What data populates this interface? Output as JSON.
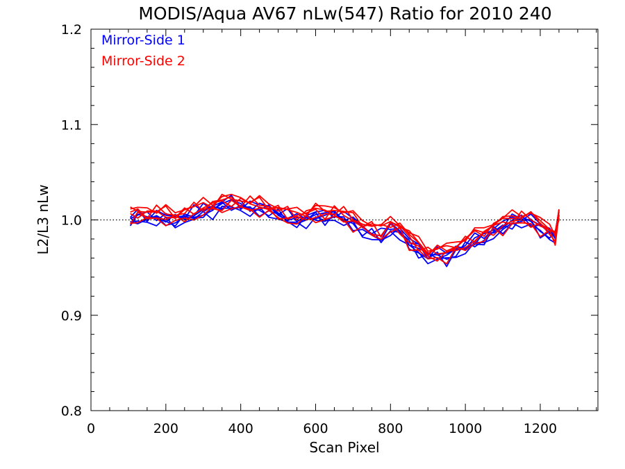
{
  "chart_data": {
    "type": "line",
    "title": "MODIS/Aqua AV67 nLw(547) Ratio for 2010 240",
    "xlabel": "Scan Pixel",
    "ylabel": "L2/L3 nLw",
    "xlim": [
      0,
      1354
    ],
    "ylim": [
      0.8,
      1.2
    ],
    "xticks": [
      0,
      200,
      400,
      600,
      800,
      1000,
      1200
    ],
    "xtick_labels": [
      "0",
      "200",
      "400",
      "600",
      "800",
      "1000",
      "1200"
    ],
    "yticks": [
      0.8,
      0.9,
      1.0,
      1.1,
      1.2
    ],
    "ytick_labels": [
      "0.8",
      "0.9",
      "1.0",
      "1.1",
      "1.2"
    ],
    "reference_line": 1.0,
    "legend_position": "top-left",
    "colors": {
      "Mirror-Side 1": "#0000ff",
      "Mirror-Side 2": "#ff0000",
      "axes": "#000000"
    },
    "x": [
      105,
      125,
      150,
      175,
      200,
      225,
      250,
      275,
      300,
      325,
      350,
      375,
      400,
      425,
      450,
      475,
      500,
      525,
      550,
      575,
      600,
      625,
      650,
      675,
      700,
      725,
      750,
      775,
      800,
      825,
      850,
      875,
      900,
      925,
      950,
      975,
      1000,
      1025,
      1050,
      1075,
      1100,
      1125,
      1150,
      1175,
      1200,
      1225,
      1240,
      1250
    ],
    "series": [
      {
        "name": "Mirror-Side 1",
        "offsets": [
          -0.006,
          -0.003,
          -0.001,
          0.002,
          -0.004,
          0.001
        ],
        "values": [
          1.001,
          1.004,
          1.003,
          1.005,
          1.002,
          1.001,
          1.004,
          1.007,
          1.01,
          1.013,
          1.017,
          1.019,
          1.016,
          1.014,
          1.013,
          1.012,
          1.008,
          1.003,
          1.0,
          1.003,
          1.006,
          1.004,
          1.007,
          1.003,
          0.999,
          0.991,
          0.987,
          0.983,
          0.992,
          0.99,
          0.977,
          0.97,
          0.963,
          0.966,
          0.962,
          0.969,
          0.973,
          0.979,
          0.982,
          0.99,
          0.994,
          1.0,
          1.002,
          1.001,
          0.992,
          0.987,
          0.985,
          1.006
        ]
      },
      {
        "name": "Mirror-Side 2",
        "offsets": [
          0.005,
          0.002,
          -0.002,
          0.004,
          -0.005,
          0.007
        ],
        "values": [
          1.003,
          1.005,
          1.004,
          1.006,
          1.003,
          1.002,
          1.005,
          1.008,
          1.011,
          1.014,
          1.016,
          1.018,
          1.016,
          1.015,
          1.013,
          1.011,
          1.007,
          1.004,
          1.002,
          1.004,
          1.007,
          1.005,
          1.007,
          1.004,
          0.998,
          0.993,
          0.99,
          0.986,
          0.994,
          0.991,
          0.979,
          0.972,
          0.963,
          0.964,
          0.965,
          0.97,
          0.975,
          0.981,
          0.984,
          0.991,
          0.995,
          0.999,
          1.001,
          1.0,
          0.993,
          0.988,
          0.981,
          1.006
        ]
      }
    ]
  }
}
